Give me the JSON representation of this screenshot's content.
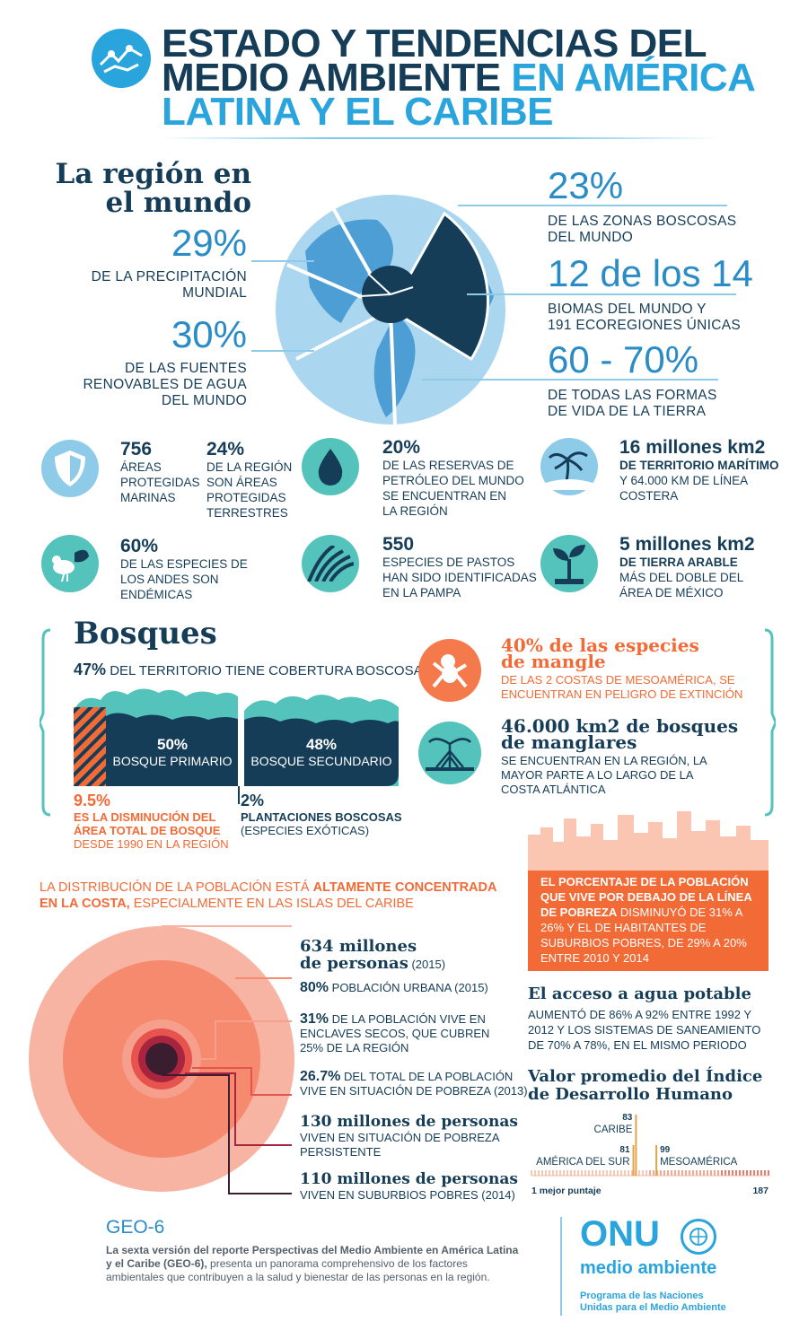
{
  "header": {
    "title_line1": "ESTADO Y TENDENCIAS DEL",
    "title_line2a": "MEDIO AMBIENTE ",
    "title_line2b": "EN AMÉRICA",
    "title_line3": "LATINA Y EL CARIBE"
  },
  "region": {
    "heading": "La región en el mundo",
    "left": [
      {
        "value": "29%",
        "label": "DE LA PRECIPITACIÓN\nMUNDIAL"
      },
      {
        "value": "30%",
        "label": "DE LAS FUENTES\nRENOVABLES DE AGUA\nDEL MUNDO"
      }
    ],
    "right": [
      {
        "value": "23%",
        "label": "DE LAS ZONAS BOSCOSAS\nDEL MUNDO"
      },
      {
        "value": "12 de los 14",
        "label": "BIOMAS DEL MUNDO Y\n191 ECOREGIONES ÚNICAS"
      },
      {
        "value": "60 - 70%",
        "label": "DE TODAS LAS FORMAS\nDE VIDA DE LA TIERRA"
      }
    ]
  },
  "stats": [
    {
      "value": "756",
      "label": "ÁREAS\nPROTEGIDAS\nMARINAS"
    },
    {
      "value": "24%",
      "label": "DE LA REGIÓN\nSON ÁREAS\nPROTEGIDAS\nTERRESTRES"
    },
    {
      "value": "20%",
      "label": "DE LAS RESERVAS DE\nPETRÓLEO DEL MUNDO\nSE ENCUENTRAN EN\nLA REGIÓN"
    },
    {
      "value": "16 millones km2",
      "label_bold": "DE TERRITORIO MARÍTIMO",
      "label": "Y 64.000 KM DE LÍNEA\nCOSTERA"
    },
    {
      "value": "60%",
      "label": "DE LAS ESPECIES DE\nLOS ANDES SON\nENDÉMICAS"
    },
    {
      "value": "550",
      "label": "ESPECIES DE PASTOS\nHAN SIDO IDENTIFICADAS\nEN LA PAMPA"
    },
    {
      "value": "5 millones km2",
      "label_bold": "DE TIERRA ARABLE",
      "label": "MÁS DEL DOBLE DEL\nÁREA DE MÉXICO"
    }
  ],
  "bosques": {
    "heading": "Bosques",
    "cover_value": "47%",
    "cover_label": " DEL TERRITORIO TIENE COBERTURA BOSCOSA:",
    "primary_value": "50%",
    "primary_label": "BOSQUE PRIMARIO",
    "secondary_value": "48%",
    "secondary_label": "BOSQUE SECUNDARIO",
    "loss_value": "9.5%",
    "loss_label": "ES LA DISMINUCIÓN DEL\nÁREA TOTAL DE BOSQUE",
    "loss_sub": "DESDE 1990 EN LA REGIÓN",
    "plant_value": "2%",
    "plant_label": "PLANTACIONES BOSCOSAS",
    "plant_sub": "(ESPECIES EXÓTICAS)"
  },
  "mangle": {
    "sp_title": "40% de las especies\nde mangle",
    "sp_text": "DE LAS 2 COSTAS DE MESOAMÉRICA, SE\nENCUENTRAN EN PELIGRO DE EXTINCIÓN",
    "km_title": "46.000 km2 de bosques\nde manglares",
    "km_text": "SE ENCUENTRAN EN LA REGIÓN, LA\nMAYOR PARTE A LO LARGO DE LA\nCOSTA ATLÁNTICA"
  },
  "poblacion": {
    "intro_a": "LA DISTRIBUCIÓN DE LA POBLACIÓN ESTÁ ",
    "intro_b": "ALTAMENTE CONCENTRADA",
    "intro_c": "EN LA COSTA,",
    "intro_d": " ESPECIALMENTE EN LAS ISLAS DEL CARIBE",
    "items": [
      {
        "bold": "634 millones\nde personas",
        "text": " (2015)"
      },
      {
        "bold": "80%",
        "text": " POBLACIÓN URBANA (2015)"
      },
      {
        "bold": "31%",
        "text": " DE LA POBLACIÓN VIVE EN\nENCLAVES SECOS, QUE CUBREN\n25% DE LA REGIÓN"
      },
      {
        "bold": "26.7%",
        "text": " DEL TOTAL DE LA POBLACIÓN\nVIVE EN SITUACIÓN DE POBREZA (2013)"
      },
      {
        "bold": "130 millones de personas",
        "text": "VIVEN EN SITUACIÓN DE POBREZA\nPERSISTENTE"
      },
      {
        "bold": "110 millones de personas",
        "text": "VIVEN EN SUBURBIOS POBRES (2014)"
      }
    ]
  },
  "pobreza": {
    "bold": "EL PORCENTAJE DE LA POBLACIÓN\nQUE VIVE POR DEBAJO DE LA LÍNEA\nDE POBREZA",
    "text": " DISMINUYÓ DE 31% A\n26% Y EL DE HABITANTES DE\nSUBURBIOS POBRES, DE 29% A 20%\nENTRE 2010 Y 2014"
  },
  "agua": {
    "heading": "El acceso a agua potable",
    "text": "AUMENTÓ DE 86% A 92% ENTRE 1992 Y\n2012 Y LOS SISTEMAS DE SANEAMIENTO\nDE 70% A 78%, EN EL MISMO PERIODO"
  },
  "idh": {
    "heading": "Valor promedio del Índice\nde Desarrollo Humano",
    "min_label": "1 mejor puntaje",
    "max_label": "187",
    "markers": [
      {
        "value": "83",
        "name": "CARIBE",
        "rank": 83
      },
      {
        "value": "81",
        "name": "AMÉRICA DEL SUR",
        "rank": 81
      },
      {
        "value": "99",
        "name": "MESOAMÉRICA",
        "rank": 99
      }
    ]
  },
  "footer": {
    "geo": "GEO-6",
    "text_bold": "La sexta versión del reporte Perspectivas del Medio Ambiente en América Latina\ny el Caribe (GEO-6),",
    "text": " presenta un panorama comprehensivo de los factores\nambientales que contribuyen a la salud y bienestar de las personas en la región.",
    "onu": "ONU",
    "ma": "medio ambiente",
    "prog": "Programa de las Naciones\nUnidas para el Medio Ambiente"
  }
}
